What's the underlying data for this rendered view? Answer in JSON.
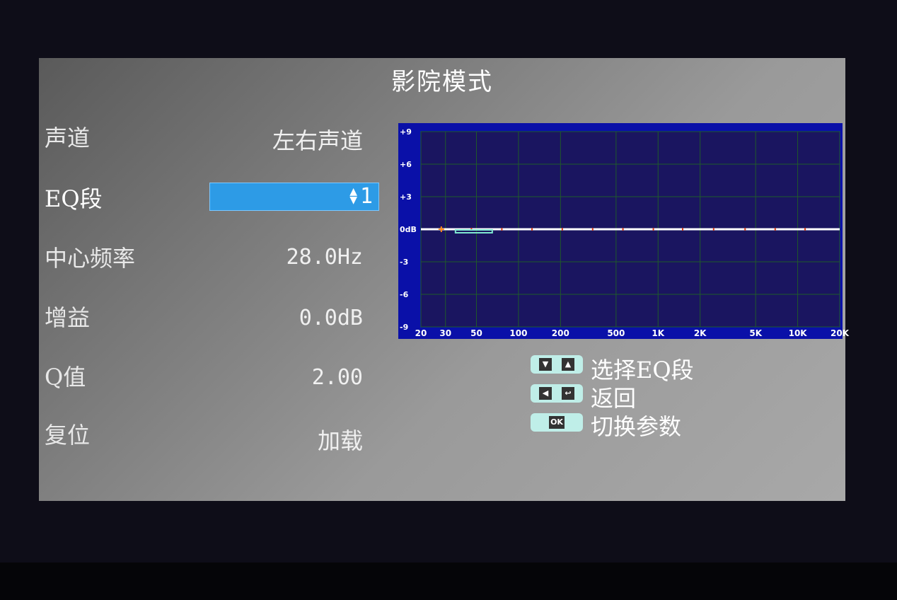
{
  "title": "影院模式",
  "settings": [
    {
      "label": "声道",
      "value": "左右声道"
    },
    {
      "label": "EQ段",
      "value": "1"
    },
    {
      "label": "中心频率",
      "value": "28.0Hz"
    },
    {
      "label": "增益",
      "value": "0.0dB"
    },
    {
      "label": "Q值",
      "value": "2.00"
    },
    {
      "label": "复位",
      "value": "加载"
    }
  ],
  "help": [
    {
      "keys": [
        "down-triangle-icon",
        "up-triangle-icon"
      ],
      "text": "选择EQ段"
    },
    {
      "keys": [
        "left-triangle-icon",
        "return-icon"
      ],
      "text": "返回"
    },
    {
      "keys": [
        "OK"
      ],
      "text": "切换参数"
    }
  ],
  "colors": {
    "selection": "#2d9be6",
    "chart_bg": "#0a10a8",
    "plot_bg": "#1a1560",
    "grid": "#1f5a2a",
    "curve": "#ffffff",
    "band_marker": "#d04020",
    "selected_band": "#ff8c1a"
  },
  "chart_data": {
    "type": "line",
    "x_scale": "log",
    "xlim": [
      20,
      20000
    ],
    "ylim": [
      -9,
      9
    ],
    "x_ticks": [
      "20",
      "30",
      "50",
      "100",
      "200",
      "500",
      "1K",
      "2K",
      "5K",
      "10K",
      "20K"
    ],
    "x_tick_values": [
      20,
      30,
      50,
      100,
      200,
      500,
      1000,
      2000,
      5000,
      10000,
      20000
    ],
    "y_ticks": [
      "+9",
      "+6",
      "+3",
      "0dB",
      "-3",
      "-6",
      "-9"
    ],
    "y_tick_values": [
      9,
      6,
      3,
      0,
      -3,
      -6,
      -9
    ],
    "grid": true,
    "curve": {
      "x": [
        20,
        20000
      ],
      "y": [
        0,
        0
      ]
    },
    "selected_band": {
      "freq": 28,
      "gain": 0
    },
    "band_markers": [
      28,
      46,
      76,
      125,
      206,
      340,
      560,
      925,
      1500,
      2500,
      4200,
      6900,
      11300
    ]
  }
}
